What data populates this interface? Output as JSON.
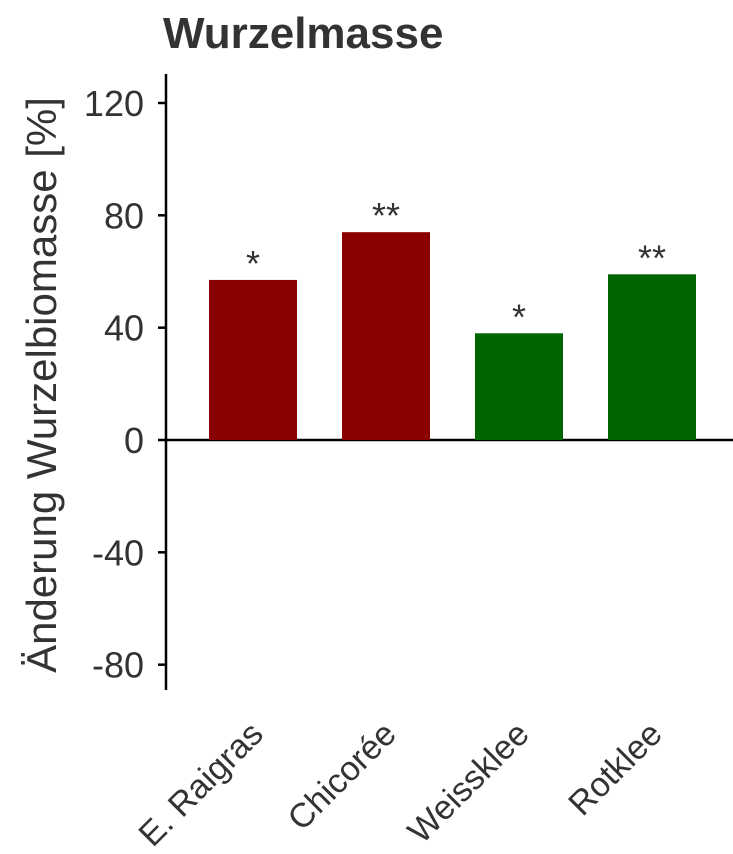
{
  "chart_data": {
    "type": "bar",
    "title": "Wurzelmasse",
    "ylabel": "Änderung Wurzelbiomasse [%]",
    "xlabel": "",
    "ylim": [
      -90,
      130
    ],
    "yticks": [
      120,
      80,
      40,
      0,
      -40,
      -80
    ],
    "ytick_labels": [
      "120",
      "80",
      "40",
      "0",
      "-40",
      "-80"
    ],
    "categories": [
      "E. Raigras",
      "Chicorée",
      "Weissklee",
      "Rotklee"
    ],
    "values": [
      57,
      74,
      38,
      59
    ],
    "significance": [
      "*",
      "**",
      "*",
      "**"
    ],
    "colors": [
      "#8b0000",
      "#8b0000",
      "#006400",
      "#006400"
    ],
    "grid": false,
    "legend": "none"
  }
}
